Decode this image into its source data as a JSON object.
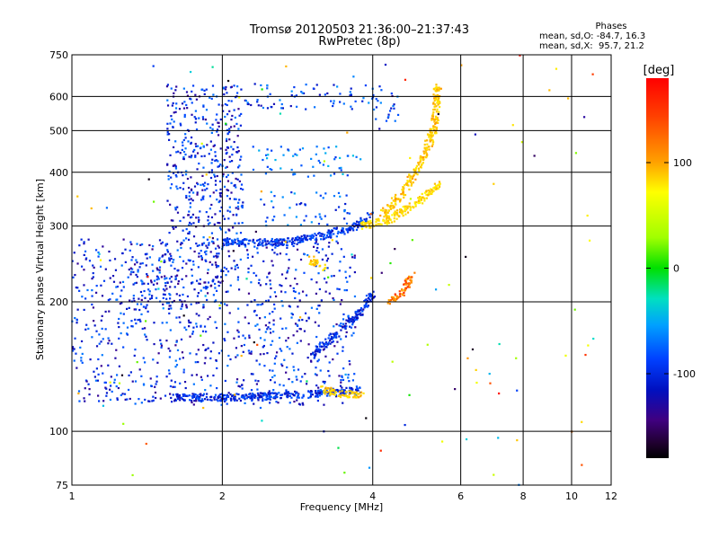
{
  "header": {
    "title": "Tromsø 20120503 21:36:00–21:37:43",
    "subtitle": "RwPretec (8p)"
  },
  "stats": {
    "heading": "Phases",
    "line1": "mean, sd,O: -84.7, 16.3",
    "line2": "mean, sd,X:  95.7, 21.2"
  },
  "colorbar": {
    "label": "[deg]",
    "ticks": [
      "100",
      "0",
      "-100"
    ],
    "tick_values": [
      100,
      0,
      -100
    ],
    "range": [
      -180,
      180
    ]
  },
  "chart_data": {
    "type": "scatter",
    "title": "Tromsø 20120503 21:36:00–21:37:43",
    "subtitle": "RwPretec (8p)",
    "xlabel": "Frequency [MHz]",
    "ylabel": "Stationary phase Virtual Height [km]",
    "xscale": "log",
    "yscale": "log",
    "xlim": [
      1,
      12
    ],
    "ylim": [
      75,
      750
    ],
    "xticks": [
      1,
      2,
      4,
      6,
      8,
      10,
      12
    ],
    "xtick_labels": [
      "1",
      "2",
      "4",
      "6",
      "8",
      "10",
      "12"
    ],
    "yticks": [
      75,
      100,
      200,
      300,
      400,
      500,
      600,
      750
    ],
    "ytick_labels": [
      "75",
      "100",
      "200",
      "300",
      "400",
      "500",
      "600",
      "750"
    ],
    "grid": true,
    "color_by": "phase [deg]",
    "colormap": "rainbow",
    "regions": [
      {
        "x": [
          1.55,
          2.2
        ],
        "y": [
          280,
          640
        ],
        "phase": -100,
        "density": 1.0
      },
      {
        "x": [
          2.2,
          4.0
        ],
        "y": [
          560,
          640
        ],
        "phase": -90,
        "density": 0.6
      },
      {
        "x": [
          2.3,
          3.8
        ],
        "y": [
          390,
          460
        ],
        "phase": -70,
        "density": 0.5
      },
      {
        "x": [
          2.4,
          3.6
        ],
        "y": [
          300,
          360
        ],
        "phase": -80,
        "density": 0.5
      },
      {
        "x": [
          1.0,
          3.7
        ],
        "y": [
          115,
          280
        ],
        "phase": -100,
        "density": 0.55
      },
      {
        "x": [
          1.3,
          2.0
        ],
        "y": [
          190,
          280
        ],
        "phase": -105,
        "density": 0.7
      },
      {
        "x": [
          4.0,
          4.6
        ],
        "y": [
          500,
          640
        ],
        "phase": -95,
        "density": 0.5
      }
    ],
    "traces": [
      {
        "x": [
          2.0,
          2.6,
          3.2,
          3.7,
          4.0
        ],
        "y": [
          275,
          275,
          285,
          300,
          320
        ],
        "phase": -95
      },
      {
        "x": [
          1.6,
          2.2,
          3.0,
          3.8
        ],
        "y": [
          120,
          120,
          122,
          125
        ],
        "phase": -100
      },
      {
        "x": [
          3.0,
          3.4,
          3.8,
          4.0
        ],
        "y": [
          150,
          170,
          190,
          210
        ],
        "phase": -100
      },
      {
        "x": [
          4.2,
          4.6,
          5.0,
          5.3,
          5.4
        ],
        "y": [
          320,
          360,
          420,
          500,
          640
        ],
        "phase": 120
      },
      {
        "x": [
          3.8,
          4.3,
          4.9,
          5.5
        ],
        "y": [
          300,
          310,
          340,
          380
        ],
        "phase": 110
      },
      {
        "x": [
          4.3,
          4.6,
          4.8
        ],
        "y": [
          200,
          210,
          230
        ],
        "phase": 150
      },
      {
        "x": [
          3.2,
          3.5,
          3.8
        ],
        "y": [
          125,
          122,
          122
        ],
        "phase": 115
      },
      {
        "x": [
          3.0,
          3.2
        ],
        "y": [
          250,
          240
        ],
        "phase": 115
      }
    ]
  }
}
